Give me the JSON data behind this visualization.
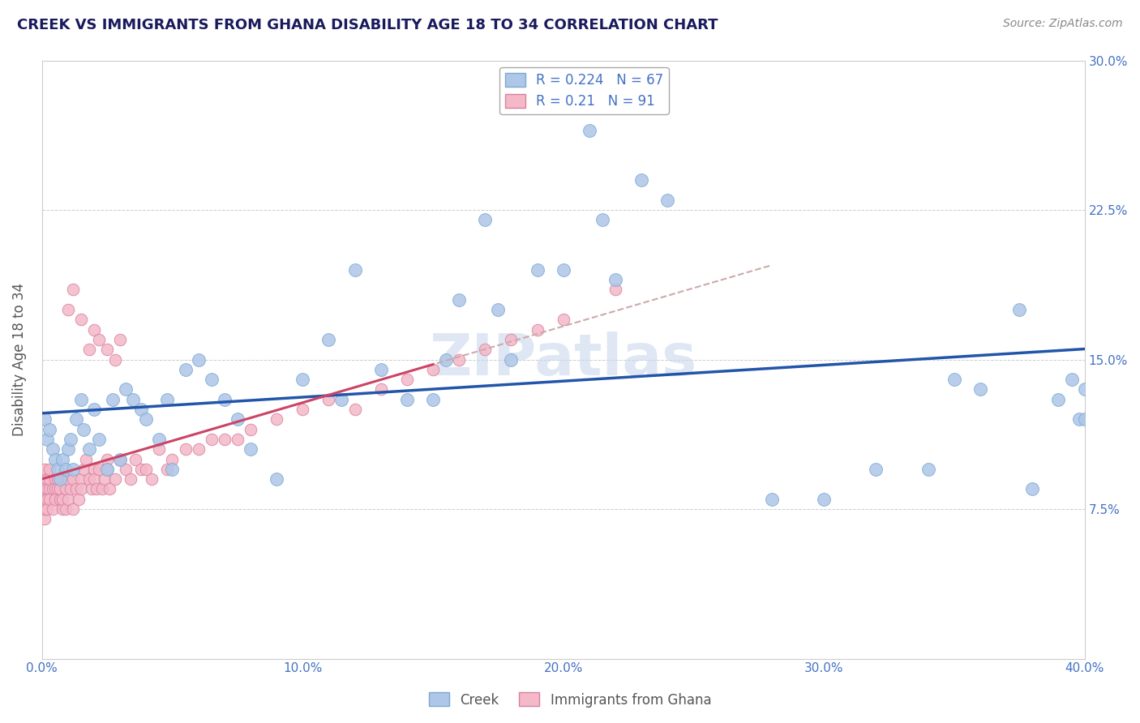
{
  "title": "CREEK VS IMMIGRANTS FROM GHANA DISABILITY AGE 18 TO 34 CORRELATION CHART",
  "source": "Source: ZipAtlas.com",
  "ylabel": "Disability Age 18 to 34",
  "xlim": [
    0.0,
    0.4
  ],
  "ylim": [
    0.0,
    0.3
  ],
  "xticks": [
    0.0,
    0.1,
    0.2,
    0.3,
    0.4
  ],
  "xticklabels": [
    "0.0%",
    "10.0%",
    "20.0%",
    "30.0%",
    "40.0%"
  ],
  "yticks": [
    0.0,
    0.075,
    0.15,
    0.225,
    0.3
  ],
  "yticklabels": [
    "",
    "7.5%",
    "15.0%",
    "22.5%",
    "30.0%"
  ],
  "creek_R": 0.224,
  "creek_N": 67,
  "ghana_R": 0.21,
  "ghana_N": 91,
  "legend_label_creek": "Creek",
  "legend_label_ghana": "Immigrants from Ghana",
  "watermark": "ZIPatlas",
  "title_color": "#1a1a5e",
  "axis_color": "#4472c4",
  "creek_color": "#aec6e8",
  "creek_edge_color": "#7aaad0",
  "ghana_color": "#f4b8c8",
  "ghana_edge_color": "#d880a0",
  "creek_line_color": "#2255aa",
  "ghana_line_color": "#cc4466",
  "ghana_line_dash_color": "#ccaaaa",
  "creek_scatter_x": [
    0.001,
    0.002,
    0.003,
    0.004,
    0.005,
    0.006,
    0.007,
    0.008,
    0.009,
    0.01,
    0.011,
    0.012,
    0.013,
    0.015,
    0.016,
    0.018,
    0.02,
    0.022,
    0.025,
    0.027,
    0.03,
    0.032,
    0.035,
    0.038,
    0.04,
    0.045,
    0.048,
    0.05,
    0.055,
    0.06,
    0.065,
    0.07,
    0.075,
    0.08,
    0.09,
    0.1,
    0.11,
    0.115,
    0.12,
    0.13,
    0.14,
    0.15,
    0.155,
    0.16,
    0.17,
    0.175,
    0.18,
    0.19,
    0.2,
    0.21,
    0.215,
    0.22,
    0.23,
    0.24,
    0.28,
    0.3,
    0.32,
    0.34,
    0.35,
    0.36,
    0.375,
    0.38,
    0.39,
    0.395,
    0.398,
    0.4,
    0.4
  ],
  "creek_scatter_y": [
    0.12,
    0.11,
    0.115,
    0.105,
    0.1,
    0.095,
    0.09,
    0.1,
    0.095,
    0.105,
    0.11,
    0.095,
    0.12,
    0.13,
    0.115,
    0.105,
    0.125,
    0.11,
    0.095,
    0.13,
    0.1,
    0.135,
    0.13,
    0.125,
    0.12,
    0.11,
    0.13,
    0.095,
    0.145,
    0.15,
    0.14,
    0.13,
    0.12,
    0.105,
    0.09,
    0.14,
    0.16,
    0.13,
    0.195,
    0.145,
    0.13,
    0.13,
    0.15,
    0.18,
    0.22,
    0.175,
    0.15,
    0.195,
    0.195,
    0.265,
    0.22,
    0.19,
    0.24,
    0.23,
    0.08,
    0.08,
    0.095,
    0.095,
    0.14,
    0.135,
    0.175,
    0.085,
    0.13,
    0.14,
    0.12,
    0.12,
    0.135
  ],
  "ghana_scatter_x": [
    0.001,
    0.001,
    0.001,
    0.001,
    0.001,
    0.001,
    0.001,
    0.001,
    0.001,
    0.002,
    0.002,
    0.002,
    0.002,
    0.003,
    0.003,
    0.003,
    0.003,
    0.004,
    0.004,
    0.005,
    0.005,
    0.005,
    0.006,
    0.006,
    0.007,
    0.007,
    0.008,
    0.008,
    0.009,
    0.009,
    0.01,
    0.01,
    0.011,
    0.012,
    0.012,
    0.013,
    0.014,
    0.015,
    0.015,
    0.016,
    0.017,
    0.018,
    0.019,
    0.02,
    0.02,
    0.021,
    0.022,
    0.023,
    0.024,
    0.025,
    0.025,
    0.026,
    0.028,
    0.03,
    0.032,
    0.034,
    0.036,
    0.038,
    0.04,
    0.042,
    0.045,
    0.048,
    0.05,
    0.055,
    0.06,
    0.065,
    0.07,
    0.075,
    0.08,
    0.09,
    0.1,
    0.11,
    0.12,
    0.13,
    0.14,
    0.15,
    0.16,
    0.17,
    0.18,
    0.19,
    0.2,
    0.22,
    0.02,
    0.025,
    0.028,
    0.03,
    0.015,
    0.018,
    0.022,
    0.012,
    0.01
  ],
  "ghana_scatter_y": [
    0.085,
    0.09,
    0.095,
    0.075,
    0.08,
    0.085,
    0.07,
    0.075,
    0.08,
    0.085,
    0.09,
    0.08,
    0.075,
    0.085,
    0.09,
    0.095,
    0.08,
    0.085,
    0.075,
    0.09,
    0.085,
    0.08,
    0.09,
    0.085,
    0.08,
    0.085,
    0.075,
    0.08,
    0.085,
    0.075,
    0.09,
    0.08,
    0.085,
    0.075,
    0.09,
    0.085,
    0.08,
    0.09,
    0.085,
    0.095,
    0.1,
    0.09,
    0.085,
    0.095,
    0.09,
    0.085,
    0.095,
    0.085,
    0.09,
    0.1,
    0.095,
    0.085,
    0.09,
    0.1,
    0.095,
    0.09,
    0.1,
    0.095,
    0.095,
    0.09,
    0.105,
    0.095,
    0.1,
    0.105,
    0.105,
    0.11,
    0.11,
    0.11,
    0.115,
    0.12,
    0.125,
    0.13,
    0.125,
    0.135,
    0.14,
    0.145,
    0.15,
    0.155,
    0.16,
    0.165,
    0.17,
    0.185,
    0.165,
    0.155,
    0.15,
    0.16,
    0.17,
    0.155,
    0.16,
    0.185,
    0.175
  ]
}
